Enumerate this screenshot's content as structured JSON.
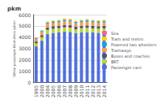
{
  "chart_data": {
    "type": "bar",
    "stacked": true,
    "title": "pkm",
    "ylabel": "Billion passenger-kilometres (pkm)",
    "categories": [
      "1995",
      "2000",
      "2004",
      "2005",
      "2006",
      "2007",
      "2008",
      "2009",
      "2010",
      "2011",
      "2012",
      "2013",
      "2014"
    ],
    "series": [
      {
        "name": "Passenger cars",
        "values": [
          3200,
          3700,
          4300,
          4380,
          4420,
          4500,
          4480,
          4350,
          4430,
          4460,
          4420,
          4400,
          4420
        ]
      },
      {
        "name": "BRT",
        "values": [
          270,
          310,
          360,
          370,
          375,
          380,
          378,
          362,
          370,
          374,
          368,
          363,
          368
        ]
      },
      {
        "name": "Buses and coaches",
        "values": [
          160,
          185,
          215,
          220,
          223,
          226,
          223,
          213,
          217,
          219,
          216,
          213,
          216
        ]
      },
      {
        "name": "Tramways",
        "values": [
          230,
          265,
          310,
          318,
          322,
          326,
          328,
          315,
          322,
          326,
          322,
          318,
          322
        ]
      },
      {
        "name": "Powered two wheelers",
        "values": [
          85,
          100,
          120,
          123,
          125,
          127,
          128,
          122,
          125,
          127,
          125,
          123,
          125
        ]
      },
      {
        "name": "Tram and metro",
        "values": [
          55,
          65,
          78,
          80,
          82,
          84,
          85,
          80,
          82,
          84,
          82,
          80,
          82
        ]
      },
      {
        "name": "Sea",
        "values": [
          8,
          10,
          12,
          12,
          12,
          13,
          13,
          12,
          12,
          12,
          12,
          12,
          12
        ]
      }
    ],
    "ylim": [
      0,
      6000
    ],
    "yticks": [
      0,
      1000,
      2000,
      3000,
      4000,
      5000,
      6000
    ],
    "grid": true,
    "legend": "right"
  }
}
